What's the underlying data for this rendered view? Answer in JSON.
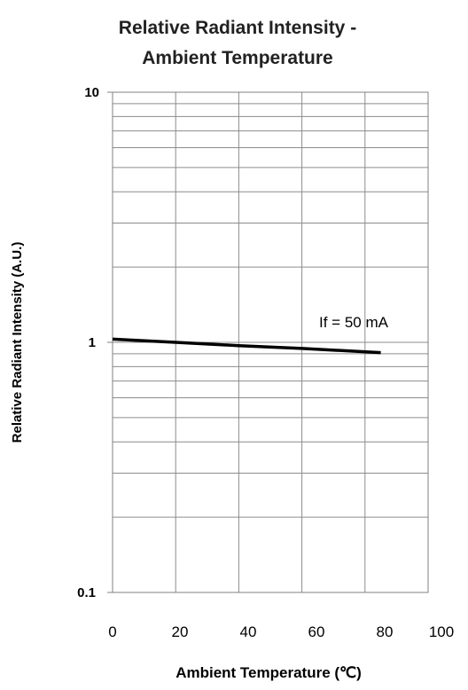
{
  "chart_data": {
    "type": "line",
    "title_lines": [
      "Relative Radiant Intensity -",
      "Ambient Temperature"
    ],
    "xlabel": "Ambient Temperature (℃)",
    "ylabel": "Relative Radiant Intensity (A.U.)",
    "y_scale": "log",
    "xlim": [
      0,
      100
    ],
    "ylim": [
      0.1,
      10
    ],
    "x_ticks": [
      0,
      20,
      40,
      60,
      80,
      100
    ],
    "x_tick_labels": [
      "0",
      "20",
      "40",
      "60",
      "80",
      "100"
    ],
    "y_ticks": [
      0.1,
      1,
      10
    ],
    "y_tick_labels": [
      "0.1",
      "1",
      "10"
    ],
    "grid": true,
    "legend": "none",
    "annotation": "If = 50 mA",
    "series": [
      {
        "x": [
          0,
          20,
          40,
          60,
          85
        ],
        "y": [
          1.03,
          1.0,
          0.97,
          0.945,
          0.91
        ],
        "color": "#000000"
      }
    ]
  }
}
